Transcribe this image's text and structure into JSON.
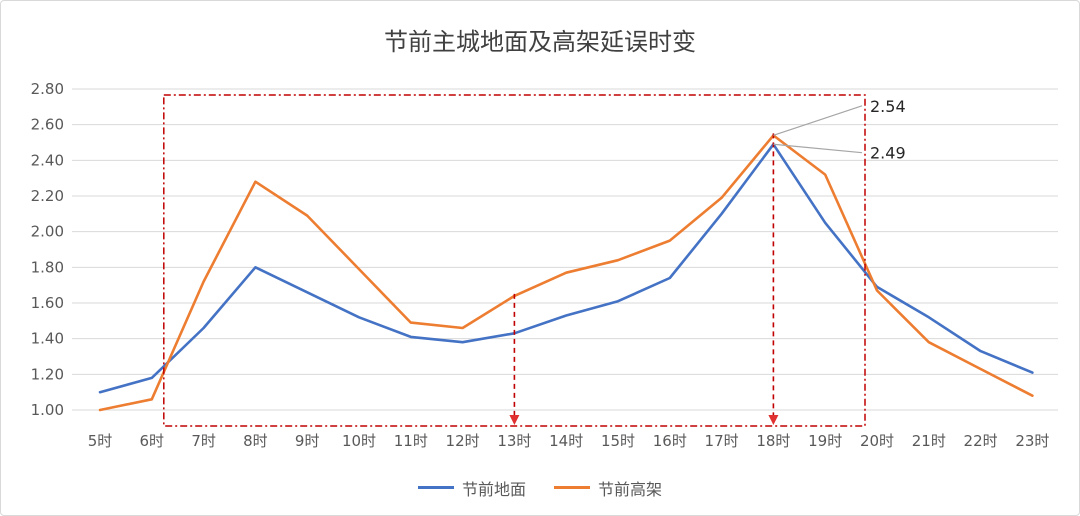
{
  "chart_data": {
    "type": "line",
    "title": "节前主城地面及高架延误时变",
    "categories": [
      "5时",
      "6时",
      "7时",
      "8时",
      "9时",
      "10时",
      "11时",
      "12时",
      "13时",
      "14时",
      "15时",
      "16时",
      "17时",
      "18时",
      "19时",
      "20时",
      "21时",
      "22时",
      "23时"
    ],
    "ylim": [
      1.0,
      2.8
    ],
    "yticks": [
      "1.00",
      "1.20",
      "1.40",
      "1.60",
      "1.80",
      "2.00",
      "2.20",
      "2.40",
      "2.60",
      "2.80"
    ],
    "grid": true,
    "legend_position": "bottom",
    "series": [
      {
        "name": "节前地面",
        "color": "#4472c4",
        "values": [
          1.1,
          1.18,
          1.46,
          1.8,
          1.66,
          1.52,
          1.41,
          1.38,
          1.43,
          1.53,
          1.61,
          1.74,
          2.1,
          2.49,
          2.05,
          1.69,
          1.52,
          1.33,
          1.21
        ]
      },
      {
        "name": "节前高架",
        "color": "#ed7d31",
        "values": [
          1.0,
          1.06,
          1.72,
          2.28,
          2.09,
          1.79,
          1.49,
          1.46,
          1.64,
          1.77,
          1.84,
          1.95,
          2.19,
          2.54,
          2.32,
          1.67,
          1.38,
          1.23,
          1.08
        ]
      }
    ],
    "annotations": {
      "labels": [
        {
          "text": "2.54",
          "category": "18时",
          "value": 2.54
        },
        {
          "text": "2.49",
          "category": "18时",
          "value": 2.49
        }
      ],
      "highlight_box": {
        "from": "6时",
        "to": "20时",
        "color": "#c00000"
      },
      "arrows": [
        "13时",
        "18时"
      ]
    }
  }
}
